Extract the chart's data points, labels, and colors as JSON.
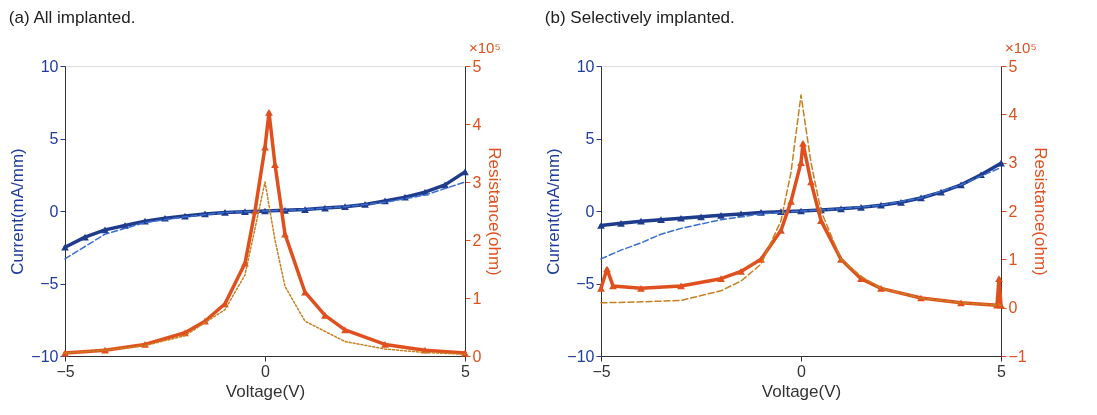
{
  "chart_data": [
    {
      "type": "line",
      "title": "(a) All implanted.",
      "xlabel": "Voltage(V)",
      "ylabel": "Current(mA/mm)",
      "y2label": "Resistance(ohm)",
      "annotations": [
        "×10⁵"
      ],
      "xlim": [
        -5,
        5
      ],
      "xticks": [
        -5,
        0,
        5
      ],
      "ylim": [
        -10,
        10
      ],
      "yticks": [
        -10,
        -5,
        0,
        5,
        10
      ],
      "y2lim": [
        0,
        5
      ],
      "y2ticks": [
        0,
        1,
        2,
        3,
        4,
        5
      ],
      "series": [
        {
          "color": "#1f3c8c",
          "axis": "y",
          "marker": "triangle",
          "line_style": "solid",
          "x": [
            -5,
            -4.5,
            -4,
            -3.5,
            -3,
            -2.5,
            -2,
            -1.5,
            -1,
            -0.5,
            0,
            0.5,
            1,
            1.5,
            2,
            2.5,
            3,
            3.5,
            4,
            4.5,
            5
          ],
          "values": [
            -2.5,
            -1.8,
            -1.3,
            -1.0,
            -0.7,
            -0.5,
            -0.35,
            -0.2,
            -0.1,
            -0.05,
            0,
            0.05,
            0.1,
            0.2,
            0.3,
            0.45,
            0.7,
            0.95,
            1.3,
            1.8,
            2.7
          ]
        },
        {
          "color": "#3a6fd0",
          "axis": "y",
          "marker": "none",
          "line_style": "dashed",
          "x": [
            -5,
            -4,
            -3,
            -2,
            -1,
            0,
            1,
            2,
            3,
            4,
            5
          ],
          "values": [
            -3.3,
            -1.6,
            -0.8,
            -0.4,
            -0.1,
            0,
            0.1,
            0.3,
            0.6,
            1.1,
            2.0
          ]
        },
        {
          "color": "#e0501e",
          "axis": "y2",
          "marker": "triangle",
          "line_style": "solid",
          "x": [
            -5,
            -4,
            -3,
            -2,
            -1.5,
            -1,
            -0.5,
            -0.25,
            0,
            0.1,
            0.25,
            0.5,
            1,
            1.5,
            2,
            3,
            4,
            5
          ],
          "values": [
            0.05,
            0.1,
            0.2,
            0.4,
            0.6,
            0.9,
            1.6,
            2.5,
            3.6,
            4.2,
            3.3,
            2.1,
            1.1,
            0.7,
            0.45,
            0.2,
            0.1,
            0.05
          ]
        },
        {
          "color": "#c8801e",
          "axis": "y2",
          "marker": "none",
          "line_style": "dotted",
          "x": [
            -5,
            -4,
            -3,
            -2,
            -1,
            -0.5,
            -0.25,
            0,
            0.25,
            0.5,
            1,
            2,
            3,
            4,
            5
          ],
          "values": [
            0.05,
            0.1,
            0.18,
            0.35,
            0.8,
            1.4,
            2.2,
            3.0,
            2.0,
            1.2,
            0.6,
            0.25,
            0.12,
            0.06,
            0.03
          ]
        }
      ]
    },
    {
      "type": "line",
      "title": "(b) Selectively implanted.",
      "xlabel": "Voltage(V)",
      "ylabel": "Current(mA/mm)",
      "y2label": "Resistance(ohm)",
      "annotations": [
        "×10⁵"
      ],
      "xlim": [
        -5,
        5
      ],
      "xticks": [
        -5,
        0,
        5
      ],
      "ylim": [
        -10,
        10
      ],
      "yticks": [
        -10,
        -5,
        0,
        5,
        10
      ],
      "y2lim": [
        -1,
        5
      ],
      "y2ticks": [
        -1,
        0,
        1,
        2,
        3,
        4,
        5
      ],
      "series": [
        {
          "color": "#1f3c8c",
          "axis": "y",
          "marker": "triangle",
          "line_style": "solid",
          "x": [
            -5,
            -4.5,
            -4,
            -3.5,
            -3,
            -2.5,
            -2,
            -1.5,
            -1,
            -0.5,
            0,
            0.5,
            1,
            1.5,
            2,
            2.5,
            3,
            3.5,
            4,
            4.5,
            5
          ],
          "values": [
            -1.0,
            -0.85,
            -0.7,
            -0.6,
            -0.5,
            -0.4,
            -0.3,
            -0.2,
            -0.1,
            -0.05,
            0,
            0.07,
            0.15,
            0.25,
            0.4,
            0.6,
            0.9,
            1.3,
            1.8,
            2.5,
            3.3
          ]
        },
        {
          "color": "#3a6fd0",
          "axis": "y",
          "marker": "none",
          "line_style": "dashed",
          "x": [
            -5,
            -4.5,
            -4,
            -3.5,
            -3,
            -2,
            -1,
            0,
            1,
            2,
            3,
            4,
            5
          ],
          "values": [
            -3.3,
            -2.7,
            -2.2,
            -1.6,
            -1.2,
            -0.6,
            -0.2,
            0,
            0.15,
            0.4,
            0.9,
            1.8,
            3.0
          ]
        },
        {
          "color": "#e0501e",
          "axis": "y2",
          "marker": "triangle",
          "line_style": "solid",
          "x": [
            -5,
            -4.85,
            -4.7,
            -4,
            -3,
            -2,
            -1.5,
            -1,
            -0.5,
            -0.25,
            0,
            0.05,
            0.25,
            0.5,
            1,
            1.5,
            2,
            3,
            4,
            4.9,
            4.95,
            5
          ],
          "values": [
            0.4,
            0.8,
            0.45,
            0.4,
            0.45,
            0.6,
            0.75,
            1.0,
            1.6,
            2.2,
            3.0,
            3.4,
            2.6,
            1.8,
            1.0,
            0.6,
            0.4,
            0.2,
            0.1,
            0.05,
            0.6,
            0.05
          ]
        },
        {
          "color": "#c8801e",
          "axis": "y2",
          "marker": "none",
          "line_style": "dashed",
          "x": [
            -5,
            -4,
            -3,
            -2,
            -1.5,
            -1,
            -0.5,
            -0.25,
            0,
            0.25,
            0.5,
            1,
            1.5,
            2,
            3,
            4,
            5
          ],
          "values": [
            0.1,
            0.12,
            0.15,
            0.35,
            0.55,
            0.9,
            1.8,
            2.8,
            4.4,
            3.0,
            2.0,
            1.0,
            0.65,
            0.4,
            0.2,
            0.1,
            0.05
          ]
        }
      ]
    }
  ]
}
